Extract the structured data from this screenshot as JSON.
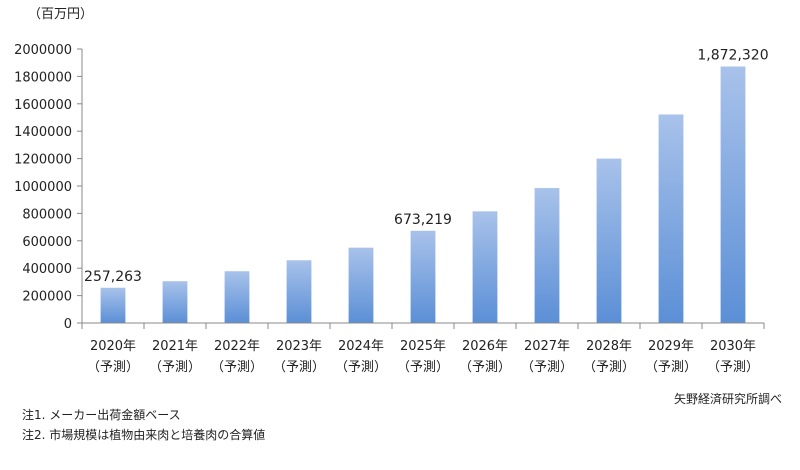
{
  "chart_data": {
    "type": "bar",
    "unit_label": "（百万円）",
    "categories": [
      "2020年",
      "2021年",
      "2022年",
      "2023年",
      "2024年",
      "2025年",
      "2026年",
      "2027年",
      "2028年",
      "2029年",
      "2030年"
    ],
    "category_sublabel": "（予測）",
    "values": [
      257263,
      305000,
      378000,
      458000,
      550000,
      673219,
      815000,
      985000,
      1200000,
      1522000,
      1872320
    ],
    "data_labels": [
      {
        "index": 0,
        "text": "257,263"
      },
      {
        "index": 5,
        "text": "673,219"
      },
      {
        "index": 10,
        "text": "1,872,320"
      }
    ],
    "yticks": [
      "0",
      "200000",
      "400000",
      "600000",
      "800000",
      "1000000",
      "1200000",
      "1400000",
      "1600000",
      "1800000",
      "2000000"
    ],
    "ylim": [
      0,
      2000000
    ],
    "grid": false,
    "bar_color_top": "#a8c2ea",
    "bar_color_bottom": "#5b8fd6"
  },
  "source": "矢野経済研究所調べ",
  "notes": [
    "注1. メーカー出荷金額ベース",
    "注2. 市場規模は植物由来肉と培養肉の合算値"
  ]
}
